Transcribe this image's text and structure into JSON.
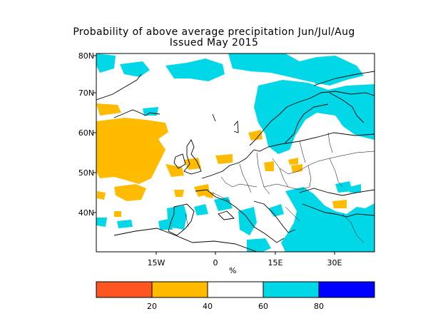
{
  "title": "Probability of above average precipitation Jun/Jul/Aug",
  "subtitle": "Issued May 2015",
  "colors": {
    "below_low": "#ff5522",
    "below": "#ffbb00",
    "neutral": "#ffffff",
    "above": "#00d8e8",
    "above_high": "#0000ff",
    "coastline": "#000000"
  },
  "map": {
    "lat_ticks": [
      "40N",
      "50N",
      "60N",
      "70N",
      "80N"
    ],
    "lon_ticks": [
      "15W",
      "0",
      "15E",
      "30E"
    ]
  },
  "colorbar": {
    "unit": "%",
    "labels": [
      "20",
      "40",
      "60",
      "80"
    ],
    "segments": [
      {
        "range": "0-20",
        "color": "#ff5522"
      },
      {
        "range": "20-40",
        "color": "#ffbb00"
      },
      {
        "range": "40-60",
        "color": "#ffffff"
      },
      {
        "range": "60-80",
        "color": "#00d8e8"
      },
      {
        "range": "80-100",
        "color": "#0000ff"
      }
    ]
  }
}
